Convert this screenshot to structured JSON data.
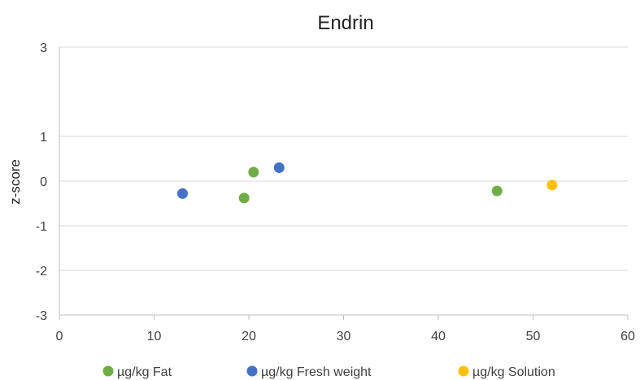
{
  "chart_data": {
    "type": "scatter",
    "title": "Endrin",
    "xlabel": "",
    "ylabel": "z-score",
    "xlim": [
      0,
      60
    ],
    "ylim": [
      -3,
      3
    ],
    "x_ticks": [
      0,
      10,
      20,
      30,
      40,
      50,
      60
    ],
    "y_ticks": [
      3,
      1,
      0,
      -1,
      -2,
      -3
    ],
    "y_tick_labels": [
      "3",
      "1",
      "0",
      "-1",
      "-2",
      "-3"
    ],
    "grid": true,
    "legend_position": "bottom",
    "series": [
      {
        "name": "µg/kg Fat",
        "color": "#70AD47",
        "points": [
          {
            "x": 19.5,
            "y": -0.38
          },
          {
            "x": 20.5,
            "y": 0.2
          },
          {
            "x": 46.2,
            "y": -0.22
          }
        ]
      },
      {
        "name": "µg/kg Fresh weight",
        "color": "#4472C4",
        "points": [
          {
            "x": 13.0,
            "y": -0.28
          },
          {
            "x": 23.2,
            "y": 0.3
          }
        ]
      },
      {
        "name": "µg/kg Solution",
        "color": "#FFC000",
        "points": [
          {
            "x": 52.0,
            "y": -0.09
          }
        ]
      }
    ]
  }
}
